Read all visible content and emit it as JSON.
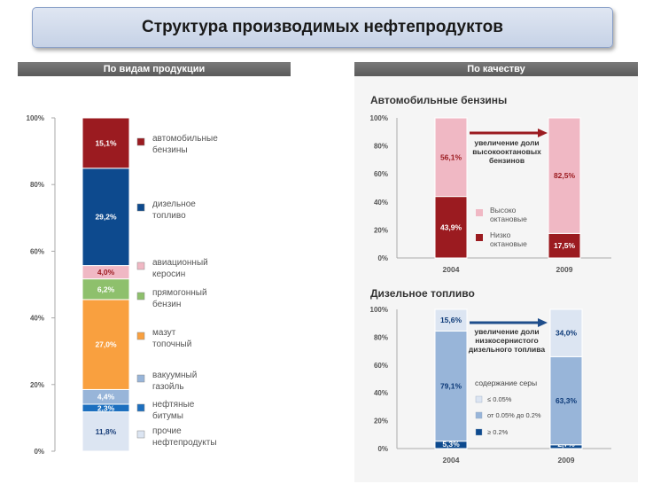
{
  "title": "Структура производимых нефтепродуктов",
  "left_header": "По видам продукции",
  "right_header": "По качеству",
  "chart_data": [
    {
      "type": "bar",
      "stacked": true,
      "yticks": [
        "0%",
        "20%",
        "40%",
        "60%",
        "80%",
        "100%"
      ],
      "ylim": [
        0,
        100
      ],
      "series": [
        {
          "name": "прочие нефтепродукты",
          "value": 11.8,
          "label": "11,8%",
          "legend": [
            "прочие",
            "нефтепродукты"
          ],
          "color": "#dce5f2",
          "text_color": "#1a3f7a"
        },
        {
          "name": "нефтяные битумы",
          "value": 2.3,
          "label": "2,3%",
          "legend": [
            "нефтяные",
            "битумы"
          ],
          "color": "#1c6fbf",
          "text_color": "#ffffff"
        },
        {
          "name": "вакуумный газойль",
          "value": 4.4,
          "label": "4,4%",
          "legend": [
            "вакуумный",
            "газойль"
          ],
          "color": "#98b5d9",
          "text_color": "#ffffff"
        },
        {
          "name": "мазут топочный",
          "value": 27.0,
          "label": "27,0%",
          "legend": [
            "мазут",
            "топочный"
          ],
          "color": "#f9a03f",
          "text_color": "#ffffff"
        },
        {
          "name": "прямогонный бензин",
          "value": 6.2,
          "label": "6,2%",
          "legend": [
            "прямогонный",
            "бензин"
          ],
          "color": "#8ec06c",
          "text_color": "#ffffff"
        },
        {
          "name": "авиационный керосин",
          "value": 4.0,
          "label": "4,0%",
          "legend": [
            "авиационный",
            "керосин"
          ],
          "color": "#f0b8c4",
          "text_color": "#9b1b20"
        },
        {
          "name": "дизельное топливо",
          "value": 29.2,
          "label": "29,2%",
          "legend": [
            "дизельное",
            "топливо"
          ],
          "color": "#0d4a8e",
          "text_color": "#ffffff"
        },
        {
          "name": "автомобильные бензины",
          "value": 15.1,
          "label": "15,1%",
          "legend": [
            "автомобильные",
            "бензины"
          ],
          "color": "#9b1b20",
          "text_color": "#ffffff"
        }
      ]
    },
    {
      "type": "bar",
      "stacked": true,
      "title": "Автомобильные бензины",
      "categories": [
        "2004",
        "2009"
      ],
      "yticks": [
        "0%",
        "20%",
        "40%",
        "60%",
        "80%",
        "100%"
      ],
      "ylim": [
        0,
        100
      ],
      "series": [
        {
          "name": "Низко октановые",
          "legend": [
            "Низко",
            "октановые"
          ],
          "values": [
            43.9,
            17.5
          ],
          "labels": [
            "43,9%",
            "17,5%"
          ],
          "color": "#9b1b20",
          "text_color": "#ffffff"
        },
        {
          "name": "Высоко октановые",
          "legend": [
            "Высоко",
            "октановые"
          ],
          "values": [
            56.1,
            82.5
          ],
          "labels": [
            "56,1%",
            "82,5%"
          ],
          "color": "#f0b8c4",
          "text_color": "#9b1b20"
        }
      ],
      "annotation": [
        "увеличение доли",
        "высокооктановых",
        "бензинов"
      ],
      "arrow_color": "#9b1b20"
    },
    {
      "type": "bar",
      "stacked": true,
      "title": "Дизельное топливо",
      "categories": [
        "2004",
        "2009"
      ],
      "yticks": [
        "0%",
        "20%",
        "40%",
        "60%",
        "80%",
        "100%"
      ],
      "ylim": [
        0,
        100
      ],
      "legend_title": "содержание серы",
      "series": [
        {
          "name": "≥ 0.2%",
          "legend": "≥  0.2%",
          "values": [
            5.3,
            2.7
          ],
          "labels": [
            "5,3%",
            "2,7%"
          ],
          "color": "#0d4a8e",
          "text_color": "#ffffff"
        },
        {
          "name": "от 0.05% до 0.2%",
          "legend": "от 0.05% до 0.2%",
          "values": [
            79.1,
            63.3
          ],
          "labels": [
            "79,1%",
            "63,3%"
          ],
          "color": "#98b5d9",
          "text_color": "#0d3a78"
        },
        {
          "name": "≤ 0.05%",
          "legend": "≤ 0.05%",
          "values": [
            15.6,
            34.0
          ],
          "labels": [
            "15,6%",
            "34,0%"
          ],
          "color": "#dce5f2",
          "text_color": "#0d3a78"
        }
      ],
      "annotation": [
        "увеличение доли",
        "низкосернистого",
        "дизельного топлива"
      ],
      "arrow_color": "#1f4e8c"
    }
  ]
}
